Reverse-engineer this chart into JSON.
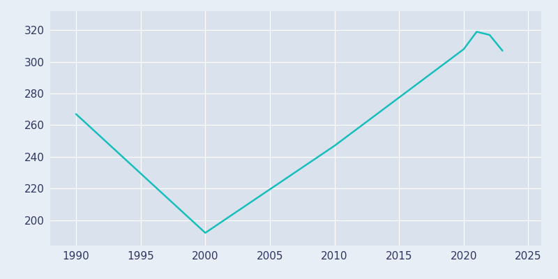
{
  "years": [
    1990,
    2000,
    2010,
    2020,
    2021,
    2022,
    2023
  ],
  "population": [
    267,
    192,
    247,
    308,
    319,
    317,
    307
  ],
  "line_color": "#17BEBB",
  "fig_bg_color": "#E8EEF5",
  "plot_bg_color": "#DAE3ED",
  "xlim": [
    1988,
    2026
  ],
  "ylim": [
    184,
    332
  ],
  "yticks": [
    200,
    220,
    240,
    260,
    280,
    300,
    320
  ],
  "xticks": [
    1990,
    1995,
    2000,
    2005,
    2010,
    2015,
    2020,
    2025
  ],
  "grid_color": "#FFFFFF",
  "line_width": 1.8,
  "tick_label_color": "#2D3561",
  "tick_label_size": 11
}
